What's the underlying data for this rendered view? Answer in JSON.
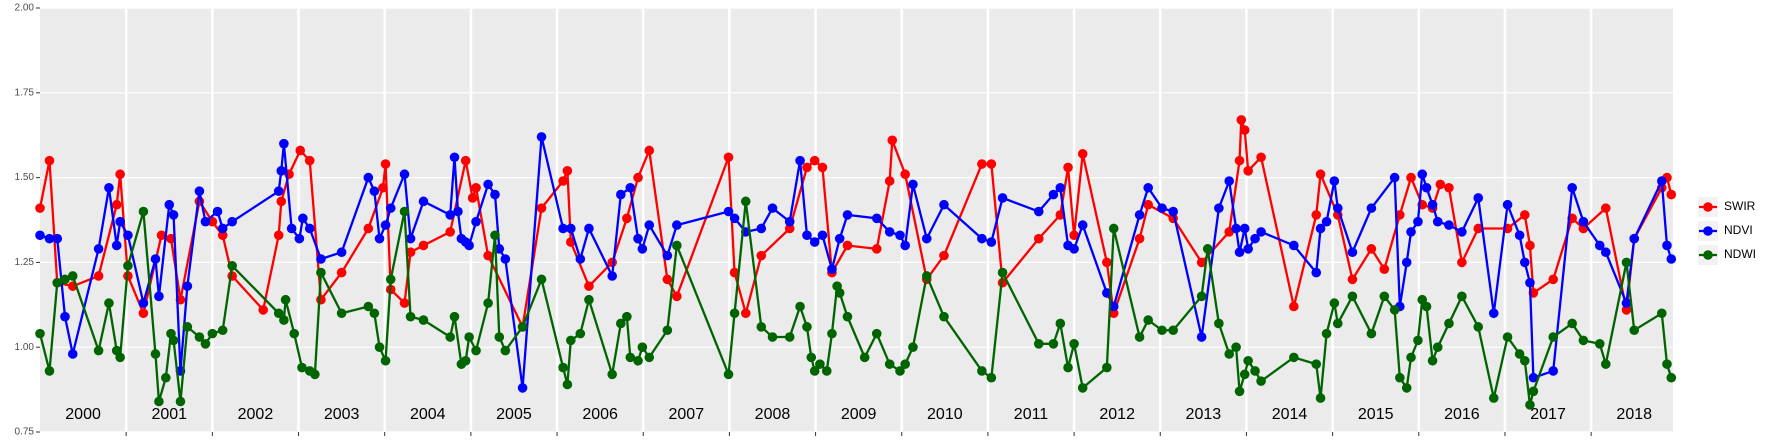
{
  "chart_data": {
    "type": "line",
    "xlim": [
      2000,
      2018.95
    ],
    "ylim": [
      0.75,
      2.0
    ],
    "yticks": [
      {
        "value": 0.75,
        "label": "0.75"
      },
      {
        "value": 1.0,
        "label": "1.00"
      },
      {
        "value": 1.25,
        "label": "1.25"
      },
      {
        "value": 1.5,
        "label": "1.50"
      },
      {
        "value": 1.75,
        "label": "1.75"
      },
      {
        "value": 2.0,
        "label": "2.00"
      }
    ],
    "xticks": [
      {
        "value": 2000.5,
        "label": "2000"
      },
      {
        "value": 2001.5,
        "label": "2001"
      },
      {
        "value": 2002.5,
        "label": "2002"
      },
      {
        "value": 2003.5,
        "label": "2003"
      },
      {
        "value": 2004.5,
        "label": "2004"
      },
      {
        "value": 2005.5,
        "label": "2005"
      },
      {
        "value": 2006.5,
        "label": "2006"
      },
      {
        "value": 2007.5,
        "label": "2007"
      },
      {
        "value": 2008.5,
        "label": "2008"
      },
      {
        "value": 2009.5,
        "label": "2009"
      },
      {
        "value": 2010.5,
        "label": "2010"
      },
      {
        "value": 2011.5,
        "label": "2011"
      },
      {
        "value": 2012.5,
        "label": "2012"
      },
      {
        "value": 2013.5,
        "label": "2013"
      },
      {
        "value": 2014.5,
        "label": "2014"
      },
      {
        "value": 2015.5,
        "label": "2015"
      },
      {
        "value": 2016.5,
        "label": "2016"
      },
      {
        "value": 2017.5,
        "label": "2017"
      },
      {
        "value": 2018.5,
        "label": "2018"
      }
    ],
    "year_boundaries": [
      2001,
      2002,
      2003,
      2004,
      2005,
      2006,
      2007,
      2008,
      2009,
      2010,
      2011,
      2012,
      2013,
      2014,
      2015,
      2016,
      2017,
      2018
    ],
    "grid": true,
    "legend": "right",
    "series": [
      {
        "name": "SWIR",
        "color": "#ff0000",
        "x": [
          2000.0,
          2000.11,
          2000.2,
          2000.38,
          2000.68,
          2000.89,
          2000.93,
          2001.02,
          2001.2,
          2001.41,
          2001.52,
          2001.63,
          2001.85,
          2002.0,
          2002.12,
          2002.23,
          2002.59,
          2002.77,
          2002.8,
          2002.89,
          2003.02,
          2003.13,
          2003.26,
          2003.5,
          2003.81,
          2003.98,
          2004.01,
          2004.07,
          2004.23,
          2004.3,
          2004.45,
          2004.76,
          2004.94,
          2005.02,
          2005.06,
          2005.2,
          2005.6,
          2005.82,
          2006.07,
          2006.12,
          2006.16,
          2006.37,
          2006.64,
          2006.81,
          2006.94,
          2007.07,
          2007.28,
          2007.39,
          2007.99,
          2008.06,
          2008.19,
          2008.37,
          2008.7,
          2008.9,
          2008.99,
          2009.08,
          2009.19,
          2009.37,
          2009.71,
          2009.86,
          2009.89,
          2010.04,
          2010.29,
          2010.49,
          2010.93,
          2011.04,
          2011.17,
          2011.59,
          2011.84,
          2011.93,
          2012.0,
          2012.1,
          2012.38,
          2012.46,
          2012.76,
          2012.86,
          2013.15,
          2013.48,
          2013.8,
          2013.92,
          2013.94,
          2013.98,
          2014.02,
          2014.17,
          2014.55,
          2014.81,
          2014.86,
          2015.06,
          2015.23,
          2015.45,
          2015.6,
          2015.78,
          2015.91,
          2016.04,
          2016.16,
          2016.25,
          2016.35,
          2016.5,
          2016.69,
          2017.03,
          2017.23,
          2017.29,
          2017.33,
          2017.56,
          2017.78,
          2017.91,
          2018.17,
          2018.41,
          2018.5,
          2018.82,
          2018.88,
          2018.93
        ],
        "values": [
          1.41,
          1.55,
          1.19,
          1.18,
          1.21,
          1.42,
          1.51,
          1.21,
          1.1,
          1.33,
          1.32,
          1.14,
          1.43,
          1.37,
          1.33,
          1.21,
          1.11,
          1.33,
          1.43,
          1.51,
          1.58,
          1.55,
          1.14,
          1.22,
          1.35,
          1.47,
          1.54,
          1.17,
          1.13,
          1.28,
          1.3,
          1.34,
          1.55,
          1.44,
          1.47,
          1.27,
          1.06,
          1.41,
          1.49,
          1.52,
          1.31,
          1.18,
          1.25,
          1.38,
          1.5,
          1.58,
          1.2,
          1.15,
          1.56,
          1.22,
          1.1,
          1.27,
          1.35,
          1.53,
          1.55,
          1.53,
          1.22,
          1.3,
          1.29,
          1.49,
          1.61,
          1.51,
          1.2,
          1.27,
          1.54,
          1.54,
          1.19,
          1.32,
          1.39,
          1.53,
          1.33,
          1.57,
          1.25,
          1.1,
          1.32,
          1.42,
          1.38,
          1.25,
          1.34,
          1.55,
          1.67,
          1.64,
          1.52,
          1.56,
          1.12,
          1.39,
          1.51,
          1.39,
          1.2,
          1.29,
          1.23,
          1.39,
          1.5,
          1.42,
          1.41,
          1.48,
          1.47,
          1.25,
          1.35,
          1.35,
          1.39,
          1.3,
          1.16,
          1.2,
          1.38,
          1.35,
          1.41,
          1.11,
          1.32,
          1.47,
          1.5,
          1.45
        ]
      },
      {
        "name": "NDVI",
        "color": "#0000ff",
        "x": [
          2000.0,
          2000.11,
          2000.2,
          2000.29,
          2000.38,
          2000.68,
          2000.8,
          2000.89,
          2000.93,
          2001.02,
          2001.2,
          2001.34,
          2001.38,
          2001.5,
          2001.55,
          2001.63,
          2001.71,
          2001.85,
          2001.92,
          2002.06,
          2002.12,
          2002.23,
          2002.77,
          2002.8,
          2002.83,
          2002.92,
          2003.01,
          2003.05,
          2003.13,
          2003.26,
          2003.5,
          2003.81,
          2003.88,
          2003.94,
          2004.01,
          2004.07,
          2004.23,
          2004.3,
          2004.45,
          2004.76,
          2004.81,
          2004.85,
          2004.89,
          2004.94,
          2004.98,
          2005.06,
          2005.2,
          2005.28,
          2005.33,
          2005.4,
          2005.6,
          2005.82,
          2006.07,
          2006.16,
          2006.27,
          2006.37,
          2006.64,
          2006.74,
          2006.85,
          2006.94,
          2006.99,
          2007.07,
          2007.28,
          2007.39,
          2007.99,
          2008.06,
          2008.19,
          2008.37,
          2008.5,
          2008.7,
          2008.82,
          2008.9,
          2008.99,
          2009.08,
          2009.19,
          2009.28,
          2009.37,
          2009.71,
          2009.86,
          2009.98,
          2010.04,
          2010.13,
          2010.29,
          2010.49,
          2010.93,
          2011.04,
          2011.17,
          2011.59,
          2011.76,
          2011.84,
          2011.93,
          2012.0,
          2012.1,
          2012.38,
          2012.46,
          2012.76,
          2012.86,
          2013.02,
          2013.15,
          2013.48,
          2013.68,
          2013.8,
          2013.88,
          2013.92,
          2013.98,
          2014.02,
          2014.1,
          2014.17,
          2014.55,
          2014.81,
          2014.86,
          2014.93,
          2015.02,
          2015.06,
          2015.23,
          2015.45,
          2015.72,
          2015.78,
          2015.86,
          2015.91,
          2015.99,
          2016.04,
          2016.09,
          2016.16,
          2016.22,
          2016.35,
          2016.5,
          2016.69,
          2016.87,
          2017.03,
          2017.17,
          2017.23,
          2017.29,
          2017.33,
          2017.56,
          2017.78,
          2017.91,
          2018.1,
          2018.17,
          2018.41,
          2018.5,
          2018.82,
          2018.88,
          2018.93
        ],
        "values": [
          1.33,
          1.32,
          1.32,
          1.09,
          0.98,
          1.29,
          1.47,
          1.3,
          1.37,
          1.33,
          1.13,
          1.26,
          1.15,
          1.42,
          1.39,
          0.93,
          1.18,
          1.46,
          1.37,
          1.4,
          1.35,
          1.37,
          1.46,
          1.52,
          1.6,
          1.35,
          1.32,
          1.38,
          1.35,
          1.26,
          1.28,
          1.5,
          1.46,
          1.32,
          1.36,
          1.41,
          1.51,
          1.32,
          1.43,
          1.39,
          1.56,
          1.4,
          1.32,
          1.31,
          1.3,
          1.37,
          1.48,
          1.45,
          1.29,
          1.26,
          0.88,
          1.62,
          1.35,
          1.35,
          1.26,
          1.35,
          1.21,
          1.45,
          1.47,
          1.32,
          1.29,
          1.36,
          1.27,
          1.36,
          1.4,
          1.38,
          1.34,
          1.35,
          1.41,
          1.37,
          1.55,
          1.33,
          1.31,
          1.33,
          1.23,
          1.32,
          1.39,
          1.38,
          1.34,
          1.33,
          1.3,
          1.48,
          1.32,
          1.42,
          1.32,
          1.31,
          1.44,
          1.4,
          1.45,
          1.47,
          1.3,
          1.29,
          1.36,
          1.16,
          1.12,
          1.39,
          1.47,
          1.41,
          1.4,
          1.03,
          1.41,
          1.49,
          1.35,
          1.28,
          1.35,
          1.29,
          1.32,
          1.34,
          1.3,
          1.22,
          1.35,
          1.37,
          1.49,
          1.41,
          1.28,
          1.41,
          1.5,
          1.12,
          1.25,
          1.34,
          1.37,
          1.51,
          1.47,
          1.42,
          1.37,
          1.36,
          1.34,
          1.44,
          1.1,
          1.42,
          1.33,
          1.25,
          1.19,
          0.91,
          0.93,
          1.47,
          1.37,
          1.3,
          1.28,
          1.13,
          1.32,
          1.49,
          1.3,
          1.26
        ]
      },
      {
        "name": "NDWI",
        "color": "#006400",
        "x": [
          2000.0,
          2000.11,
          2000.2,
          2000.29,
          2000.38,
          2000.68,
          2000.8,
          2000.89,
          2000.93,
          2001.02,
          2001.2,
          2001.34,
          2001.38,
          2001.46,
          2001.52,
          2001.55,
          2001.63,
          2001.71,
          2001.85,
          2001.92,
          2002.0,
          2002.12,
          2002.23,
          2002.77,
          2002.83,
          2002.85,
          2002.95,
          2003.04,
          2003.13,
          2003.19,
          2003.26,
          2003.5,
          2003.81,
          2003.88,
          2003.94,
          2004.01,
          2004.07,
          2004.23,
          2004.3,
          2004.45,
          2004.76,
          2004.81,
          2004.89,
          2004.94,
          2004.98,
          2005.06,
          2005.2,
          2005.28,
          2005.33,
          2005.4,
          2005.6,
          2005.82,
          2006.07,
          2006.12,
          2006.16,
          2006.27,
          2006.37,
          2006.64,
          2006.74,
          2006.81,
          2006.85,
          2006.94,
          2006.99,
          2007.07,
          2007.28,
          2007.39,
          2007.99,
          2008.06,
          2008.19,
          2008.37,
          2008.5,
          2008.7,
          2008.82,
          2008.9,
          2008.95,
          2008.99,
          2009.05,
          2009.13,
          2009.19,
          2009.25,
          2009.28,
          2009.37,
          2009.57,
          2009.71,
          2009.86,
          2009.98,
          2010.04,
          2010.13,
          2010.29,
          2010.49,
          2010.93,
          2011.04,
          2011.17,
          2011.59,
          2011.76,
          2011.84,
          2011.93,
          2012.0,
          2012.1,
          2012.38,
          2012.46,
          2012.76,
          2012.86,
          2013.02,
          2013.15,
          2013.48,
          2013.55,
          2013.68,
          2013.8,
          2013.88,
          2013.92,
          2013.98,
          2014.02,
          2014.1,
          2014.17,
          2014.55,
          2014.81,
          2014.86,
          2014.93,
          2015.02,
          2015.06,
          2015.23,
          2015.45,
          2015.6,
          2015.72,
          2015.78,
          2015.86,
          2015.91,
          2015.99,
          2016.04,
          2016.09,
          2016.16,
          2016.22,
          2016.35,
          2016.5,
          2016.69,
          2016.87,
          2017.03,
          2017.17,
          2017.23,
          2017.29,
          2017.33,
          2017.56,
          2017.78,
          2017.91,
          2018.1,
          2018.17,
          2018.41,
          2018.5,
          2018.82,
          2018.88,
          2018.93
        ],
        "values": [
          1.04,
          0.93,
          1.19,
          1.2,
          1.21,
          0.99,
          1.13,
          0.99,
          0.97,
          1.24,
          1.4,
          0.98,
          0.84,
          0.91,
          1.04,
          1.02,
          0.84,
          1.06,
          1.03,
          1.01,
          1.04,
          1.05,
          1.24,
          1.1,
          1.08,
          1.14,
          1.04,
          0.94,
          0.93,
          0.92,
          1.22,
          1.1,
          1.12,
          1.1,
          1.0,
          0.96,
          1.2,
          1.4,
          1.09,
          1.08,
          1.03,
          1.09,
          0.95,
          0.96,
          1.03,
          0.99,
          1.13,
          1.33,
          1.03,
          0.99,
          1.06,
          1.2,
          0.94,
          0.89,
          1.02,
          1.04,
          1.14,
          0.92,
          1.07,
          1.09,
          0.97,
          0.96,
          1.0,
          0.97,
          1.05,
          1.3,
          0.92,
          1.1,
          1.43,
          1.06,
          1.03,
          1.03,
          1.12,
          1.06,
          0.97,
          0.93,
          0.95,
          0.93,
          1.04,
          1.18,
          1.16,
          1.09,
          0.97,
          1.04,
          0.95,
          0.93,
          0.95,
          1.0,
          1.21,
          1.09,
          0.93,
          0.91,
          1.22,
          1.01,
          1.01,
          1.07,
          0.94,
          1.01,
          0.88,
          0.94,
          1.35,
          1.03,
          1.08,
          1.05,
          1.05,
          1.15,
          1.29,
          1.07,
          0.98,
          1.0,
          0.87,
          0.92,
          0.96,
          0.93,
          0.9,
          0.97,
          0.95,
          0.85,
          1.04,
          1.13,
          1.07,
          1.15,
          1.04,
          1.15,
          1.11,
          0.91,
          0.88,
          0.97,
          1.02,
          1.14,
          1.12,
          0.96,
          1.0,
          1.07,
          1.15,
          1.06,
          0.85,
          1.03,
          0.98,
          0.96,
          0.83,
          0.87,
          1.03,
          1.07,
          1.02,
          1.01,
          0.95,
          1.25,
          1.05,
          1.1,
          0.95,
          0.91
        ]
      }
    ]
  }
}
